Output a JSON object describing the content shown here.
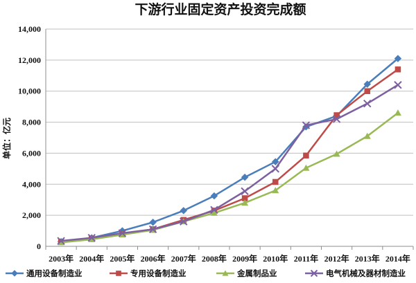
{
  "chart_data": {
    "type": "line",
    "title": "下游行业固定资产投资完成额",
    "ylabel": "单位：亿元",
    "xlabel": "",
    "categories": [
      "2003年",
      "2004年",
      "2005年",
      "2006年",
      "2007年",
      "2008年",
      "2009年",
      "2010年",
      "2011年",
      "2012年",
      "2013年",
      "2014年"
    ],
    "ylim": [
      0,
      14000
    ],
    "yticks": [
      0,
      2000,
      4000,
      6000,
      8000,
      10000,
      12000,
      14000
    ],
    "ytick_labels": [
      "0",
      "2,000",
      "4,000",
      "6,000",
      "8,000",
      "10,000",
      "12,000",
      "14,000"
    ],
    "grid": true,
    "legend_position": "bottom",
    "series": [
      {
        "name": "通用设备制造业",
        "color": "#4a7ebb",
        "marker": "diamond",
        "values": [
          300,
          550,
          1000,
          1550,
          2300,
          3250,
          4450,
          5450,
          7700,
          8400,
          10450,
          12100
        ]
      },
      {
        "name": "专用设备制造业",
        "color": "#be4b48",
        "marker": "square",
        "values": [
          300,
          500,
          800,
          1100,
          1700,
          2300,
          3100,
          4150,
          5850,
          8450,
          10000,
          11400
        ]
      },
      {
        "name": "金属制品业",
        "color": "#98b954",
        "marker": "triangle",
        "values": [
          250,
          450,
          750,
          1050,
          1600,
          2150,
          2800,
          3600,
          5050,
          5950,
          7100,
          8600
        ]
      },
      {
        "name": "电气机械及器材制造业",
        "color": "#7d60a0",
        "marker": "x",
        "values": [
          350,
          550,
          850,
          1100,
          1600,
          2350,
          3550,
          5000,
          7800,
          8200,
          9200,
          10400
        ]
      }
    ]
  }
}
